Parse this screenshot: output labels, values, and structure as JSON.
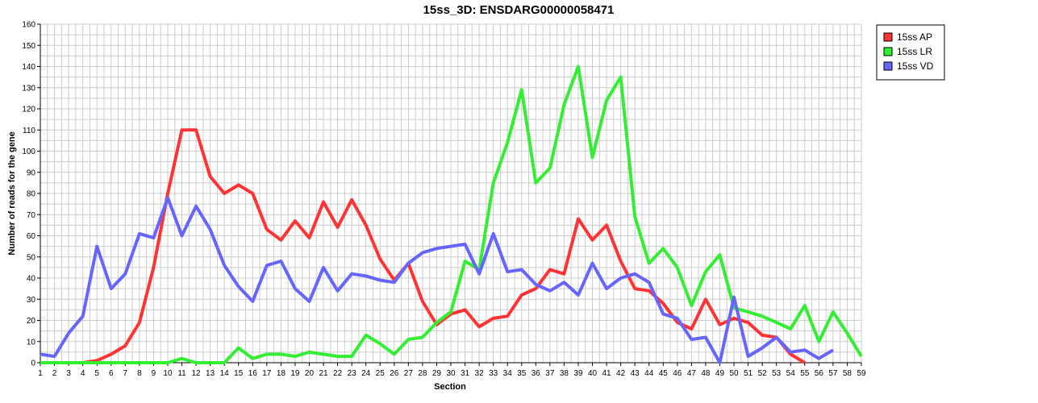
{
  "chart_data": {
    "type": "line",
    "title": "15ss_3D: ENSDARG00000058471",
    "xlabel": "Section",
    "ylabel": "Number of reads for the gene",
    "ylim": [
      0,
      160
    ],
    "yticks": [
      0,
      10,
      20,
      30,
      40,
      50,
      60,
      70,
      80,
      90,
      100,
      110,
      120,
      130,
      140,
      150,
      160
    ],
    "x": [
      1,
      2,
      3,
      4,
      5,
      6,
      7,
      8,
      9,
      10,
      11,
      12,
      13,
      14,
      15,
      16,
      17,
      18,
      19,
      20,
      21,
      22,
      23,
      24,
      25,
      26,
      27,
      28,
      29,
      30,
      31,
      32,
      33,
      34,
      35,
      36,
      37,
      38,
      39,
      40,
      41,
      42,
      43,
      44,
      45,
      46,
      47,
      48,
      49,
      50,
      51,
      52,
      53,
      54,
      55,
      56,
      57,
      58,
      59
    ],
    "grid": true,
    "legend_position": "top-right",
    "series": [
      {
        "name": "15ss AP",
        "color": "#ff3333",
        "values": [
          0,
          0,
          0,
          0,
          1,
          4,
          8,
          19,
          45,
          80,
          110,
          110,
          88,
          80,
          84,
          80,
          63,
          58,
          67,
          59,
          76,
          64,
          77,
          65,
          49,
          39,
          47,
          29,
          18,
          23,
          25,
          17,
          21,
          22,
          32,
          35,
          44,
          42,
          68,
          58,
          65,
          48,
          35,
          34,
          28,
          19,
          16,
          30,
          18,
          21,
          19,
          13,
          12,
          4,
          0,
          null,
          null,
          null,
          null
        ]
      },
      {
        "name": "15ss LR",
        "color": "#33ee33",
        "values": [
          0,
          0,
          0,
          0,
          0,
          0,
          0,
          0,
          0,
          0,
          2,
          0,
          0,
          0,
          7,
          2,
          4,
          4,
          3,
          5,
          4,
          3,
          3,
          13,
          9,
          4,
          11,
          12,
          19,
          24,
          48,
          44,
          85,
          104,
          129,
          85,
          92,
          122,
          140,
          97,
          124,
          135,
          69,
          47,
          54,
          45,
          27,
          43,
          51,
          26,
          24,
          22,
          19,
          16,
          27,
          10,
          24,
          14,
          3
        ]
      },
      {
        "name": "15ss VD",
        "color": "#6666ff",
        "values": [
          4,
          3,
          14,
          22,
          55,
          35,
          42,
          61,
          59,
          78,
          60,
          74,
          63,
          46,
          36,
          29,
          46,
          48,
          35,
          29,
          45,
          34,
          42,
          41,
          39,
          38,
          47,
          52,
          54,
          55,
          56,
          42,
          61,
          43,
          44,
          37,
          34,
          38,
          32,
          47,
          35,
          40,
          42,
          38,
          23,
          21,
          11,
          12,
          0,
          31,
          3,
          7,
          12,
          5,
          6,
          2,
          6,
          null,
          null
        ]
      }
    ]
  }
}
